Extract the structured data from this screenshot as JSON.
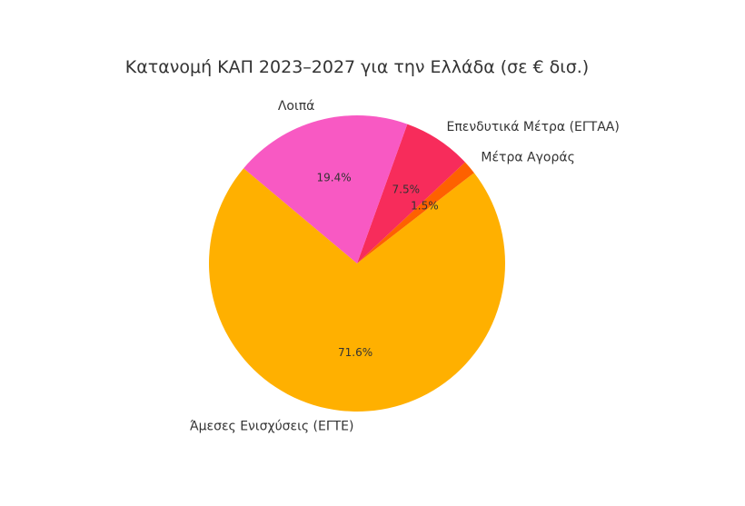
{
  "chart_data": {
    "type": "pie",
    "title": "Κατανομή ΚΑΠ 2023–2027 για την Ελλάδα (σε € δισ.)",
    "start_angle_deg": 140,
    "direction": "counterclockwise",
    "slices": [
      {
        "label": "Άμεσες Ενισχύσεις (ΕΓΤΕ)",
        "value": 71.6,
        "pct_label": "71.6%",
        "color": "#FFB000"
      },
      {
        "label": "Μέτρα Αγοράς",
        "value": 1.5,
        "pct_label": "1.5%",
        "color": "#FE6100"
      },
      {
        "label": "Επενδυτικά Μέτρα (ΕΓΤΑΑ)",
        "value": 7.5,
        "pct_label": "7.5%",
        "color": "#F72C5B"
      },
      {
        "label": "Λοιπά",
        "value": 19.4,
        "pct_label": "19.4%",
        "color": "#F859C3"
      }
    ]
  }
}
